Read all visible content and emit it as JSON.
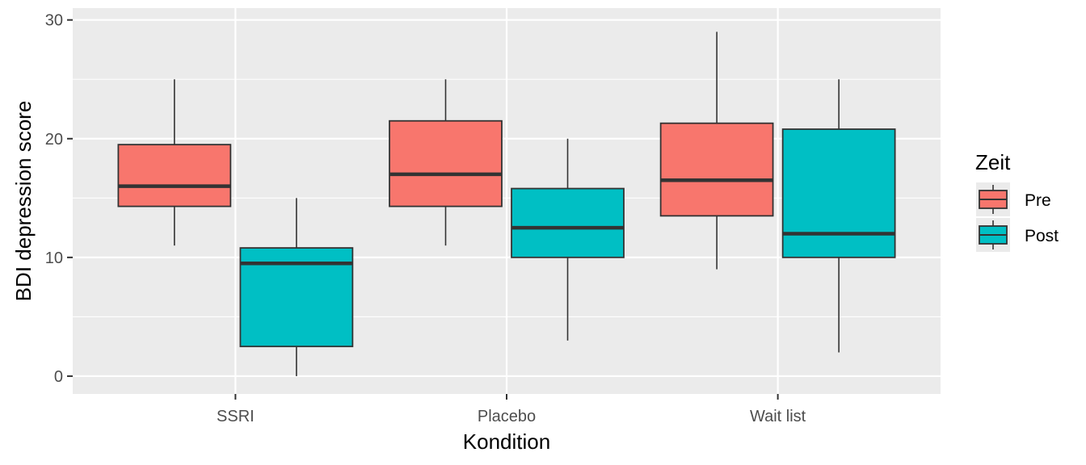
{
  "chart_data": {
    "type": "boxplot",
    "xlabel": "Kondition",
    "ylabel": "BDI depression score",
    "categories": [
      "SSRI",
      "Placebo",
      "Wait list"
    ],
    "ylim": [
      -1.5,
      31
    ],
    "yticks": [
      0,
      10,
      20,
      30
    ],
    "grid": true,
    "legend": {
      "title": "Zeit",
      "placement": "right",
      "entries": [
        {
          "label": "Pre",
          "color": "#F8766D"
        },
        {
          "label": "Post",
          "color": "#00BFC4"
        }
      ]
    },
    "series": [
      {
        "name": "Pre",
        "color": "#F8766D",
        "boxes": [
          {
            "category": "SSRI",
            "min": 11,
            "q1": 14.3,
            "median": 16,
            "q3": 19.5,
            "max": 25
          },
          {
            "category": "Placebo",
            "min": 11,
            "q1": 14.3,
            "median": 17,
            "q3": 21.5,
            "max": 25
          },
          {
            "category": "Wait list",
            "min": 9,
            "q1": 13.5,
            "median": 16.5,
            "q3": 21.3,
            "max": 29
          }
        ]
      },
      {
        "name": "Post",
        "color": "#00BFC4",
        "boxes": [
          {
            "category": "SSRI",
            "min": 0,
            "q1": 2.5,
            "median": 9.5,
            "q3": 10.8,
            "max": 15
          },
          {
            "category": "Placebo",
            "min": 3,
            "q1": 10,
            "median": 12.5,
            "q3": 15.8,
            "max": 20
          },
          {
            "category": "Wait list",
            "min": 2,
            "q1": 10,
            "median": 12,
            "q3": 20.8,
            "max": 25
          }
        ]
      }
    ]
  }
}
